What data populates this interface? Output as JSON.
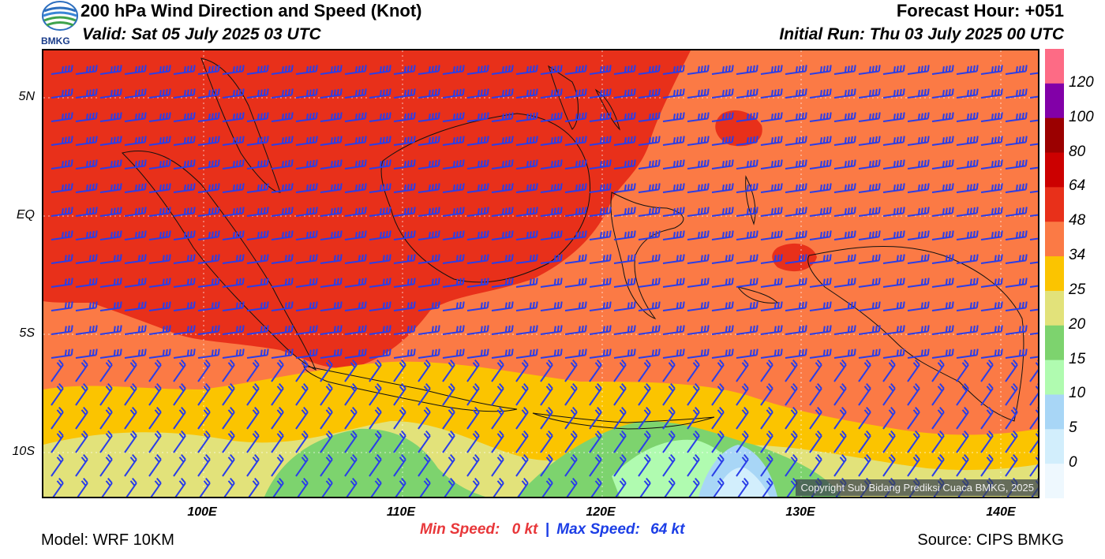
{
  "header": {
    "title": "200 hPa Wind Direction and Speed (Knot)",
    "valid": "Valid: Sat 05 July 2025 03 UTC",
    "forecast_hour": "Forecast Hour: +051",
    "initial_run": "Initial Run: Thu 03 July 2025 00 UTC",
    "logo_text": "BMKG"
  },
  "map": {
    "lat_labels": [
      "5N",
      "EQ",
      "5S",
      "10S"
    ],
    "lon_labels": [
      "100E",
      "110E",
      "120E",
      "130E",
      "140E"
    ],
    "copyright": "Copyright Sub Bidang Prediksi Cuaca BMKG, 2025"
  },
  "stats": {
    "min_label": "Min Speed:",
    "min_value": "0 kt",
    "separator": "|",
    "max_label": "Max Speed:",
    "max_value": "64 kt"
  },
  "footer": {
    "model": "Model: WRF 10KM",
    "source": "Source: CIPS BMKG"
  },
  "colorbar": {
    "labels": [
      "120",
      "100",
      "80",
      "64",
      "48",
      "34",
      "25",
      "20",
      "15",
      "10",
      "5",
      "0"
    ],
    "colors": [
      "#fd6b85",
      "#8200a8",
      "#9b0000",
      "#cc0000",
      "#e8301a",
      "#fb7a45",
      "#fbc400",
      "#e2e27a",
      "#7dd36e",
      "#b0fbb0",
      "#a8d6f6",
      "#d2eefc",
      "#eef8fe"
    ]
  },
  "colors": {
    "barb": "#2a3ee8",
    "coast": "#111111"
  }
}
